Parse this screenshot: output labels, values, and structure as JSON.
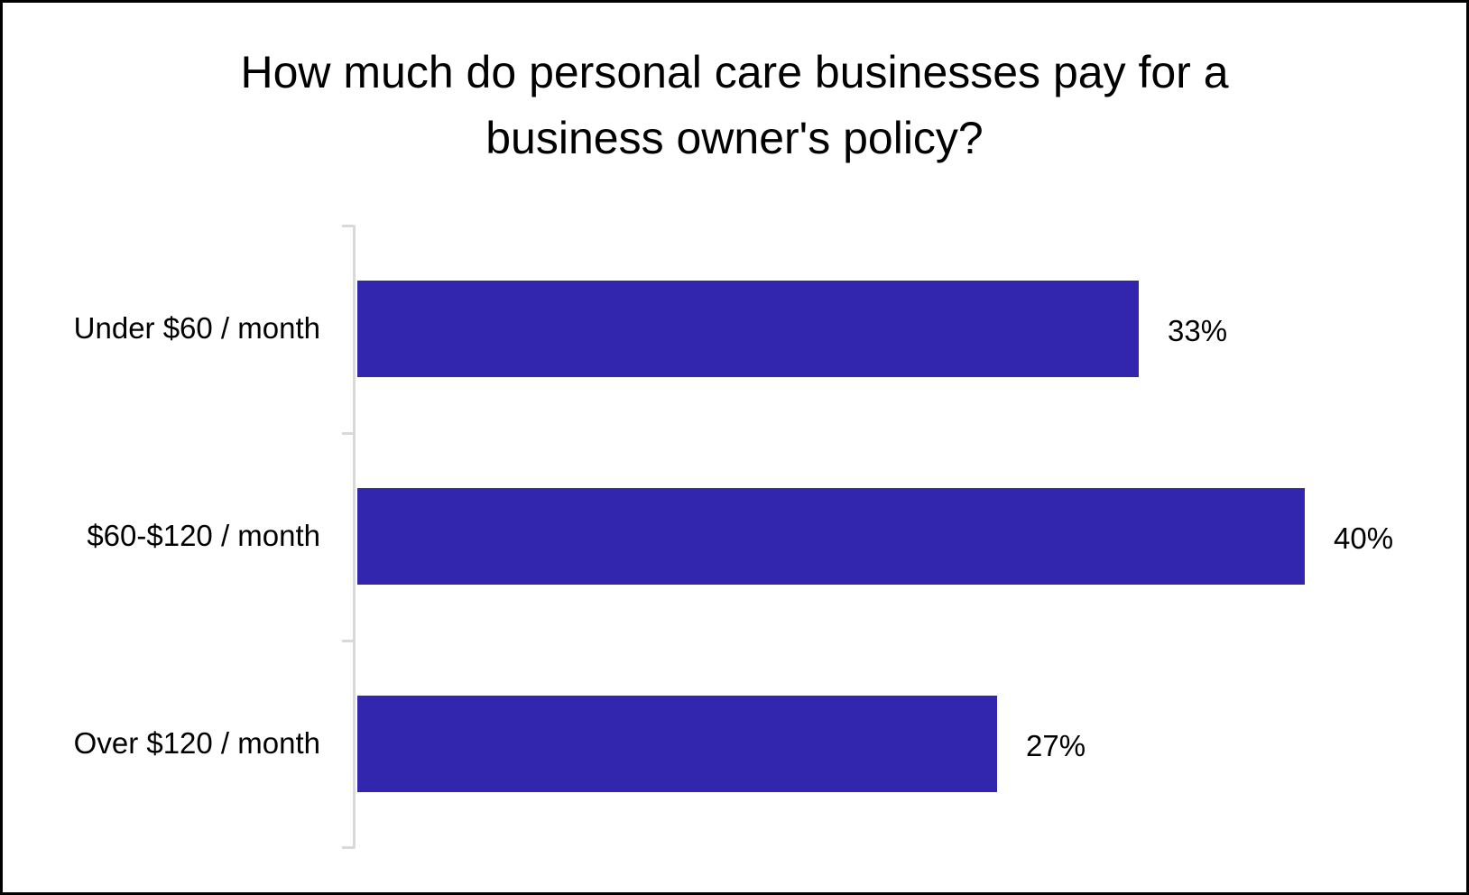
{
  "chart_data": {
    "type": "bar",
    "orientation": "horizontal",
    "title": "How much do personal care businesses pay for a business owner's policy?",
    "title_lines": [
      "How much do personal care businesses pay for a",
      "business owner's policy?"
    ],
    "categories": [
      "Under $60 / month",
      "$60-$120 / month",
      "Over $120 / month"
    ],
    "values": [
      33,
      40,
      27
    ],
    "value_labels": [
      "33%",
      "40%",
      "27%"
    ],
    "xlabel": "",
    "ylabel": "",
    "xlim": [
      0,
      40
    ],
    "grid": false,
    "legend": null,
    "bar_color": "#3226AE"
  }
}
